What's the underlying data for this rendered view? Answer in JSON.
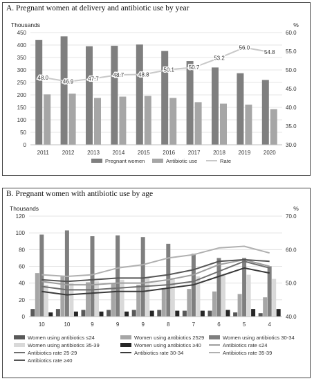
{
  "chart_data": [
    {
      "type": "bar",
      "title": "A. Pregnant women at delivery and antibiotic use by year",
      "y_unit_label": "Thousands",
      "y2_unit_label": "%",
      "categories": [
        "2011",
        "2012",
        "2013",
        "2014",
        "2015",
        "2016",
        "2017",
        "2018",
        "2019",
        "2020"
      ],
      "ylim": [
        0,
        450
      ],
      "yticks": [
        "0",
        "50",
        "100",
        "150",
        "200",
        "250",
        "300",
        "350",
        "400",
        "450"
      ],
      "y2lim": [
        30,
        60
      ],
      "y2ticks": [
        "30.0",
        "35.0",
        "40.0",
        "45.0",
        "50.0",
        "55.0",
        "60.0"
      ],
      "grid": true,
      "legend_position": "bottom",
      "series": [
        {
          "name": "Pregnant women",
          "kind": "bar",
          "axis": "left",
          "color": "#7f7f7f",
          "values": [
            420,
            435,
            395,
            397,
            402,
            376,
            336,
            310,
            287,
            260
          ]
        },
        {
          "name": "Antibiotic use",
          "kind": "bar",
          "axis": "left",
          "color": "#a6a6a6",
          "values": [
            202,
            205,
            188,
            193,
            196,
            188,
            171,
            165,
            161,
            143
          ]
        },
        {
          "name": "Rate",
          "kind": "line",
          "axis": "right",
          "color": "#c8c8c8",
          "values": [
            48.0,
            46.9,
            47.7,
            48.7,
            48.8,
            50.1,
            50.7,
            53.2,
            56.0,
            54.8
          ],
          "labels": [
            "48.0",
            "46.9",
            "47.7",
            "48.7",
            "48.8",
            "50.1",
            "50.7",
            "53.2",
            "56.0",
            "54.8"
          ]
        }
      ]
    },
    {
      "type": "bar",
      "title": "B. Pregnant women with antibiotic use by age",
      "y_unit_label": "Thousands",
      "y2_unit_label": "%",
      "categories": [
        "10",
        "10",
        "9",
        "9",
        "9",
        "8",
        "7",
        "6",
        "5",
        "4"
      ],
      "ylim": [
        0,
        120
      ],
      "yticks": [
        "0",
        "20",
        "40",
        "60",
        "80",
        "100",
        "120"
      ],
      "y2lim": [
        40,
        70
      ],
      "y2ticks": [
        "40.0",
        "50.0",
        "60.0",
        "70.0"
      ],
      "grid": true,
      "legend_position": "bottom",
      "series": [
        {
          "name": "Women using antibiotics ≤24",
          "kind": "bar",
          "axis": "left",
          "color": "#595959",
          "values": [
            9,
            9,
            8,
            8,
            8,
            8,
            7,
            7,
            5,
            4
          ]
        },
        {
          "name": "Women using antibiotics 2529",
          "kind": "bar",
          "axis": "left",
          "color": "#a6a6a6",
          "values": [
            52,
            48,
            41,
            40,
            38,
            34,
            33,
            30,
            27,
            23
          ]
        },
        {
          "name": "Women using antibiotics 30-34",
          "kind": "bar",
          "axis": "left",
          "color": "#7f7f7f",
          "values": [
            98,
            103,
            96,
            97,
            95,
            87,
            75,
            70,
            70,
            60
          ]
        },
        {
          "name": "Women using antibiotics 35-39",
          "kind": "bar",
          "axis": "left",
          "color": "#d9d9d9",
          "values": [
            38,
            40,
            42,
            44,
            46,
            46,
            48,
            50,
            50,
            45
          ]
        },
        {
          "name": "Women using antibiotics ≥40",
          "kind": "bar",
          "axis": "left",
          "color": "#262626",
          "values": [
            5,
            6,
            6,
            6,
            7,
            7,
            7,
            8,
            9,
            9
          ]
        },
        {
          "name": "Antibiotics rate ≤24",
          "kind": "line",
          "axis": "right",
          "color": "#9e9e9e",
          "values": [
            50.5,
            49.5,
            49.5,
            50.0,
            50.0,
            51.0,
            52.5,
            55.5,
            57.0,
            55.0
          ]
        },
        {
          "name": "Antibiotics rate 25-29",
          "kind": "line",
          "axis": "right",
          "color": "#6e6e6e",
          "values": [
            49.0,
            48.0,
            48.0,
            48.5,
            49.0,
            49.5,
            50.5,
            53.5,
            56.5,
            54.5
          ]
        },
        {
          "name": "Antibiotics rate 30-34",
          "kind": "line",
          "axis": "right",
          "color": "#3a3a3a",
          "values": [
            47.5,
            46.5,
            47.0,
            47.5,
            47.5,
            48.5,
            49.5,
            52.0,
            54.5,
            53.0
          ]
        },
        {
          "name": "Antibiotics rate 35-39",
          "kind": "line",
          "axis": "right",
          "color": "#b0b0b0",
          "values": [
            52.5,
            52.0,
            52.5,
            54.5,
            55.5,
            57.5,
            58.5,
            60.5,
            61.0,
            59.0
          ]
        },
        {
          "name": "Antibiotics rate ≥40",
          "kind": "line",
          "axis": "right",
          "color": "#555555",
          "values": [
            51.0,
            50.5,
            51.0,
            51.5,
            51.5,
            52.5,
            54.0,
            56.5,
            57.0,
            56.5
          ]
        }
      ]
    }
  ]
}
